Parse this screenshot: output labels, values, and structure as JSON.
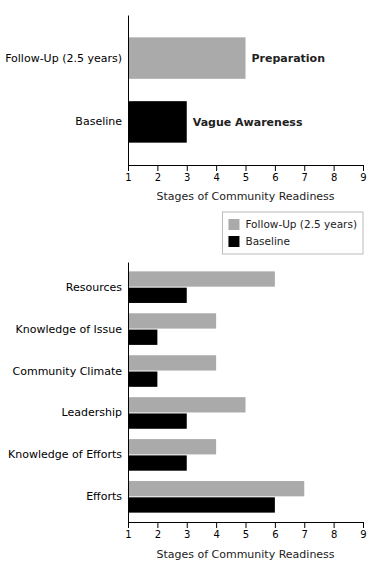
{
  "chart_data": [
    {
      "type": "bar",
      "orientation": "horizontal",
      "categories": [
        "Follow-Up (2.5 years)",
        "Baseline"
      ],
      "values": [
        5.0,
        3.0
      ],
      "colors": [
        "#aaaaaa",
        "#000000"
      ],
      "annotations": [
        "Preparation",
        "Vague Awareness"
      ],
      "xlabel": "Stages of Community Readiness",
      "xlim": [
        1,
        9
      ],
      "xticks": [
        1,
        2,
        3,
        4,
        5,
        6,
        7,
        8,
        9
      ]
    },
    {
      "type": "bar",
      "orientation": "horizontal",
      "categories": [
        "Resources",
        "Knowledge of Issue",
        "Community Climate",
        "Leadership",
        "Knowledge of Efforts",
        "Efforts"
      ],
      "series": [
        {
          "name": "Follow-Up (2.5 years)",
          "color": "#aaaaaa",
          "values": [
            6.0,
            4.0,
            4.0,
            5.0,
            4.0,
            7.0
          ]
        },
        {
          "name": "Baseline",
          "color": "#000000",
          "values": [
            3.0,
            2.0,
            2.0,
            3.0,
            3.0,
            6.0
          ]
        }
      ],
      "xlabel": "Stages of Community Readiness",
      "xlim": [
        1,
        9
      ],
      "xticks": [
        1,
        2,
        3,
        4,
        5,
        6,
        7,
        8,
        9
      ],
      "legend": "upper right"
    }
  ]
}
